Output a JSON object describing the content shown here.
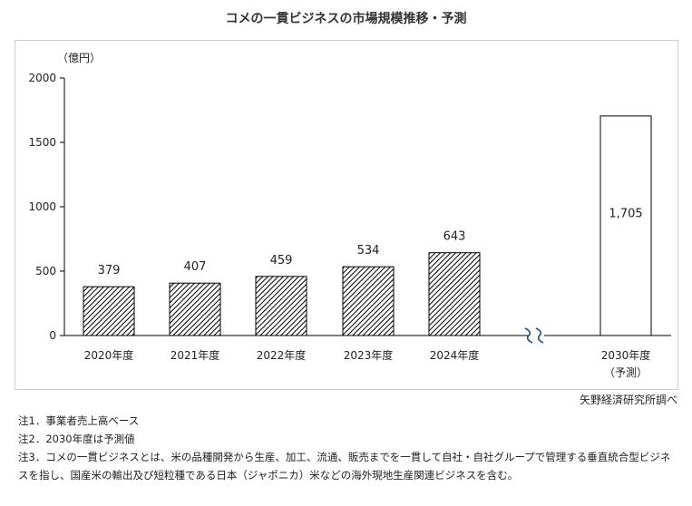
{
  "chart_data": {
    "type": "bar",
    "title": "コメの一貫ビジネスの市場規模推移・予測",
    "ylabel": "（億円）",
    "ylim": [
      0,
      2000
    ],
    "yticks": [
      0,
      500,
      1000,
      1500,
      2000
    ],
    "categories": [
      "2020年度",
      "2021年度",
      "2022年度",
      "2023年度",
      "2024年度",
      "2030年度"
    ],
    "category_sublabels": [
      "",
      "",
      "",
      "",
      "",
      "（予測）"
    ],
    "values": [
      379,
      407,
      459,
      534,
      643,
      1705
    ],
    "data_labels": [
      "379",
      "407",
      "459",
      "534",
      "643",
      "1,705"
    ],
    "forecast_index": 5,
    "axis_break": true,
    "colors": {
      "actual_pattern": "#000000",
      "forecast_fill": "#ffffff",
      "axis": "#000000",
      "break_mark": "#1f4e79"
    }
  },
  "source": "矢野経済研究所調べ",
  "notes": [
    "注1．事業者売上高ベース",
    "注2．2030年度は予測値",
    "注3．コメの一貫ビジネスとは、米の品種開発から生産、加工、流通、販売までを一貫して自社・自社グループで管理する垂直統合型ビジネスを指し、国産米の輸出及び短粒種である日本（ジャポニカ）米などの海外現地生産関連ビジネスを含む。"
  ]
}
